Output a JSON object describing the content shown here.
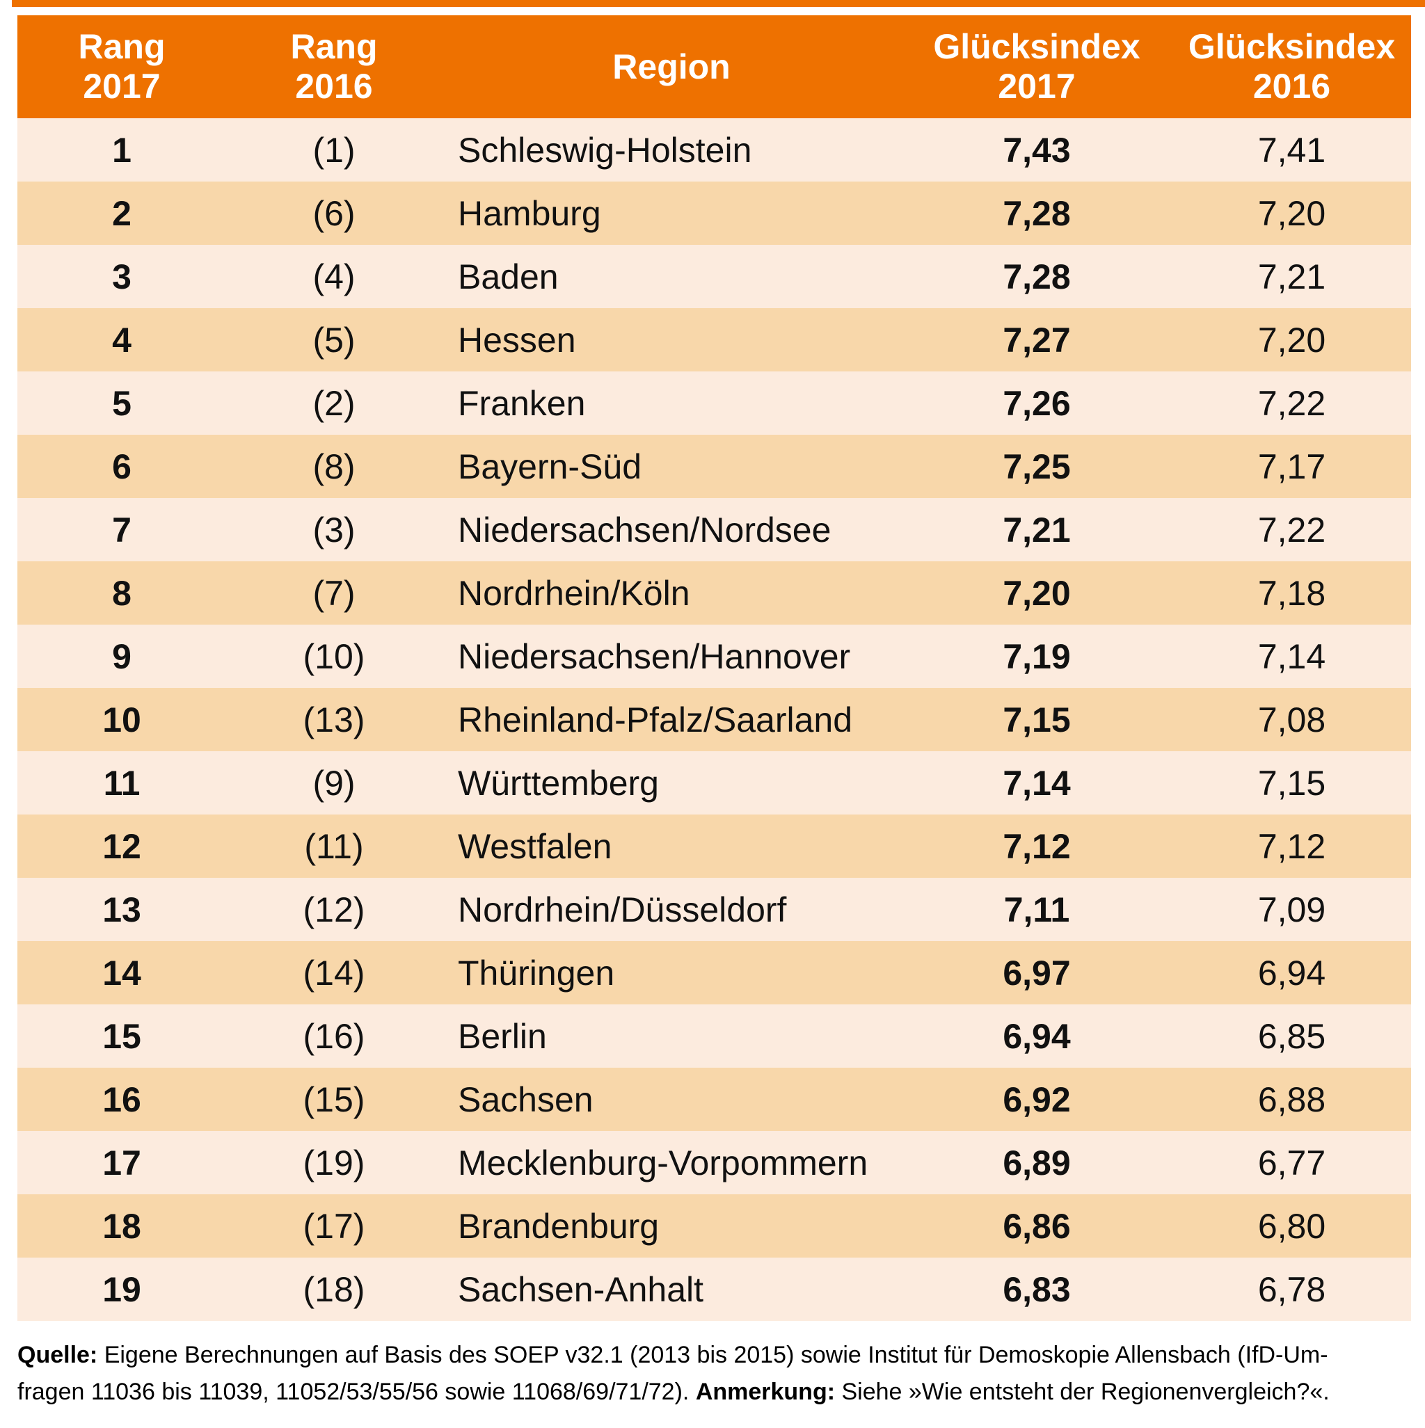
{
  "colors": {
    "header_bg": "#ee7100",
    "row_light": "#fcebde",
    "row_dark": "#f8d7aa",
    "header_text": "#ffffff",
    "body_text": "#111111"
  },
  "chart_data": {
    "type": "table",
    "column_labels": [
      "Rang\n2017",
      "Rang\n2016",
      "Region",
      "Glücksindex\n2017",
      "Glücksindex\n2016"
    ],
    "rows": [
      {
        "rank2017": "1",
        "rank2016": "(1)",
        "region": "Schleswig-Holstein",
        "index2017": "7,43",
        "index2016": "7,41"
      },
      {
        "rank2017": "2",
        "rank2016": "(6)",
        "region": "Hamburg",
        "index2017": "7,28",
        "index2016": "7,20"
      },
      {
        "rank2017": "3",
        "rank2016": "(4)",
        "region": "Baden",
        "index2017": "7,28",
        "index2016": "7,21"
      },
      {
        "rank2017": "4",
        "rank2016": "(5)",
        "region": "Hessen",
        "index2017": "7,27",
        "index2016": "7,20"
      },
      {
        "rank2017": "5",
        "rank2016": "(2)",
        "region": "Franken",
        "index2017": "7,26",
        "index2016": "7,22"
      },
      {
        "rank2017": "6",
        "rank2016": "(8)",
        "region": "Bayern-Süd",
        "index2017": "7,25",
        "index2016": "7,17"
      },
      {
        "rank2017": "7",
        "rank2016": "(3)",
        "region": "Niedersachsen/Nordsee",
        "index2017": "7,21",
        "index2016": "7,22"
      },
      {
        "rank2017": "8",
        "rank2016": "(7)",
        "region": "Nordrhein/Köln",
        "index2017": "7,20",
        "index2016": "7,18"
      },
      {
        "rank2017": "9",
        "rank2016": "(10)",
        "region": "Niedersachsen/Hannover",
        "index2017": "7,19",
        "index2016": "7,14"
      },
      {
        "rank2017": "10",
        "rank2016": "(13)",
        "region": "Rheinland-Pfalz/Saarland",
        "index2017": "7,15",
        "index2016": "7,08"
      },
      {
        "rank2017": "11",
        "rank2016": "(9)",
        "region": "Württemberg",
        "index2017": "7,14",
        "index2016": "7,15"
      },
      {
        "rank2017": "12",
        "rank2016": "(11)",
        "region": "Westfalen",
        "index2017": "7,12",
        "index2016": "7,12"
      },
      {
        "rank2017": "13",
        "rank2016": "(12)",
        "region": "Nordrhein/Düsseldorf",
        "index2017": "7,11",
        "index2016": "7,09"
      },
      {
        "rank2017": "14",
        "rank2016": "(14)",
        "region": "Thüringen",
        "index2017": "6,97",
        "index2016": "6,94"
      },
      {
        "rank2017": "15",
        "rank2016": "(16)",
        "region": "Berlin",
        "index2017": "6,94",
        "index2016": "6,85"
      },
      {
        "rank2017": "16",
        "rank2016": "(15)",
        "region": "Sachsen",
        "index2017": "6,92",
        "index2016": "6,88"
      },
      {
        "rank2017": "17",
        "rank2016": "(19)",
        "region": "Mecklenburg-Vorpommern",
        "index2017": "6,89",
        "index2016": "6,77"
      },
      {
        "rank2017": "18",
        "rank2016": "(17)",
        "region": "Brandenburg",
        "index2017": "6,86",
        "index2016": "6,80"
      },
      {
        "rank2017": "19",
        "rank2016": "(18)",
        "region": "Sachsen-Anhalt",
        "index2017": "6,83",
        "index2016": "6,78"
      }
    ]
  },
  "footer": {
    "quelle_label": "Quelle:",
    "line1_text": " Eigene Berechnungen auf Basis des SOEP v32.1 (2013 bis 2015) sowie Institut für Demoskopie Allensbach (IfD-Um-",
    "line2_text_a": "fragen 11036 bis 11039, 11052/53/55/56 sowie 11068/69/71/72). ",
    "anmerkung_label": "Anmerkung:",
    "line2_text_b": " Siehe »Wie entsteht der Regionenvergleich?«."
  }
}
